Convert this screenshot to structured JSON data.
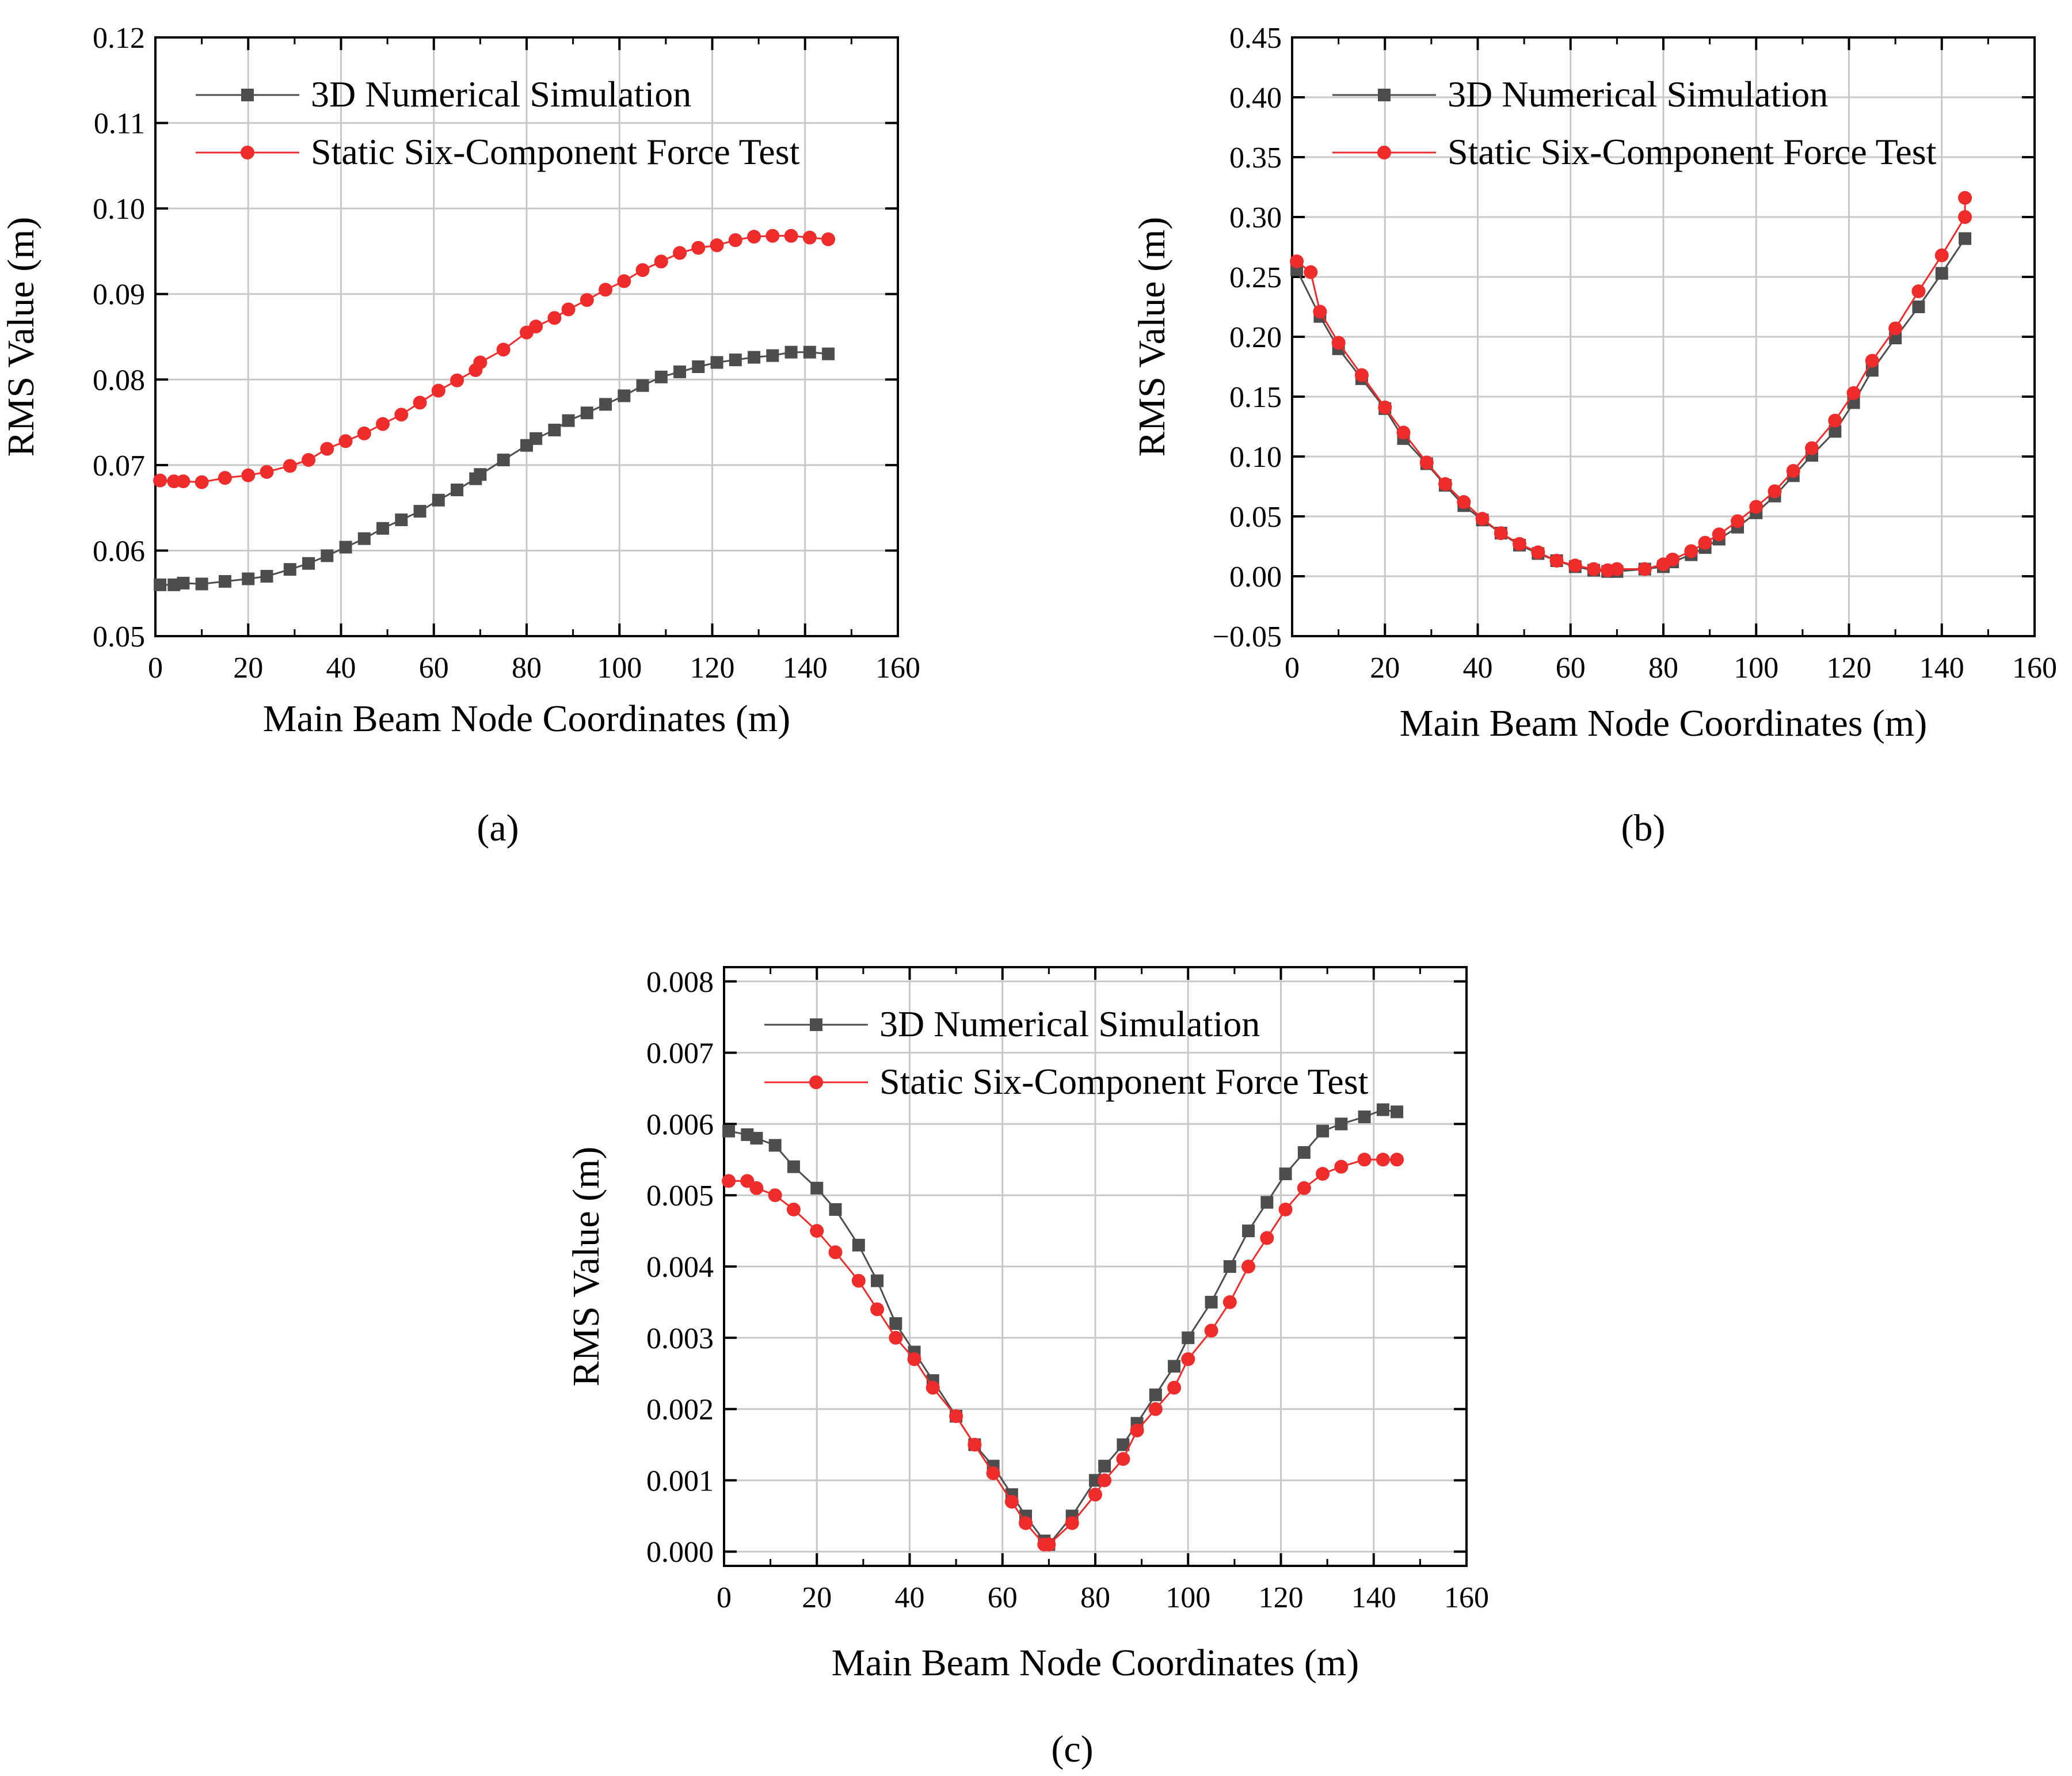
{
  "colors": {
    "sim": "#4d4d4d",
    "test": "#ee2c2c",
    "grid": "#c8c8c8"
  },
  "chart_data": [
    {
      "type": "line",
      "panel_label": "(a)",
      "xlabel": "Main Beam Node Coordinates (m)",
      "ylabel": "RMS Value (m)",
      "xlim": [
        0,
        160
      ],
      "ylim": [
        0.05,
        0.12
      ],
      "xticks": [
        "0",
        "20",
        "40",
        "60",
        "80",
        "100",
        "120",
        "140",
        "160"
      ],
      "yticks": [
        "0.05",
        "0.06",
        "0.07",
        "0.08",
        "0.09",
        "0.10",
        "0.11",
        "0.12"
      ],
      "grid": true,
      "legend_position": "top-left",
      "series": [
        {
          "name": "3D Numerical Simulation",
          "marker": "square",
          "color": "#4d4d4d",
          "x": [
            1,
            4,
            6,
            10,
            15,
            20,
            24,
            29,
            33,
            37,
            41,
            45,
            49,
            53,
            57,
            61,
            65,
            69,
            70,
            75,
            80,
            82,
            86,
            89,
            93,
            97,
            101,
            105,
            109,
            113,
            117,
            121,
            125,
            129,
            133,
            137,
            141,
            145
          ],
          "y": [
            0.056,
            0.056,
            0.0562,
            0.0561,
            0.0564,
            0.0567,
            0.057,
            0.0578,
            0.0585,
            0.0594,
            0.0604,
            0.0614,
            0.0626,
            0.0636,
            0.0646,
            0.0659,
            0.0671,
            0.0684,
            0.0689,
            0.0706,
            0.0723,
            0.0731,
            0.0741,
            0.0752,
            0.0761,
            0.0771,
            0.0781,
            0.0793,
            0.0803,
            0.0809,
            0.0815,
            0.082,
            0.0823,
            0.0826,
            0.0828,
            0.0832,
            0.0832,
            0.083
          ]
        },
        {
          "name": "Static Six-Component Force Test",
          "marker": "circle",
          "color": "#ee2c2c",
          "x": [
            1,
            4,
            6,
            10,
            15,
            20,
            24,
            29,
            33,
            37,
            41,
            45,
            49,
            53,
            57,
            61,
            65,
            69,
            70,
            75,
            80,
            82,
            86,
            89,
            93,
            97,
            101,
            105,
            109,
            113,
            117,
            121,
            125,
            129,
            133,
            137,
            141,
            145
          ],
          "y": [
            0.0682,
            0.0681,
            0.0681,
            0.068,
            0.0685,
            0.0688,
            0.0692,
            0.0699,
            0.0706,
            0.0719,
            0.0728,
            0.0737,
            0.0748,
            0.0759,
            0.0773,
            0.0787,
            0.0799,
            0.0811,
            0.082,
            0.0835,
            0.0855,
            0.0862,
            0.0872,
            0.0882,
            0.0893,
            0.0905,
            0.0915,
            0.0928,
            0.0938,
            0.0948,
            0.0954,
            0.0957,
            0.0963,
            0.0967,
            0.0968,
            0.0968,
            0.0966,
            0.0964
          ]
        }
      ]
    },
    {
      "type": "line",
      "panel_label": "(b)",
      "xlabel": "Main Beam Node Coordinates (m)",
      "ylabel": "RMS Value (m)",
      "xlim": [
        0,
        160
      ],
      "ylim": [
        -0.05,
        0.45
      ],
      "xticks": [
        "0",
        "20",
        "40",
        "60",
        "80",
        "100",
        "120",
        "140",
        "160"
      ],
      "yticks": [
        "−0.05",
        "0.00",
        "0.05",
        "0.10",
        "0.15",
        "0.20",
        "0.25",
        "0.30",
        "0.35",
        "0.40",
        "0.45"
      ],
      "grid": true,
      "legend_position": "top-left",
      "series": [
        {
          "name": "3D Numerical Simulation",
          "marker": "square",
          "color": "#4d4d4d",
          "x": [
            1,
            6,
            10,
            15,
            20,
            24,
            29,
            33,
            37,
            41,
            45,
            49,
            53,
            57,
            61,
            65,
            68,
            70,
            76,
            80,
            82,
            86,
            89,
            92,
            96,
            100,
            104,
            108,
            112,
            117,
            121,
            125,
            130,
            135,
            140,
            145
          ],
          "y": [
            0.256,
            0.217,
            0.19,
            0.165,
            0.14,
            0.115,
            0.094,
            0.076,
            0.059,
            0.047,
            0.036,
            0.026,
            0.019,
            0.013,
            0.008,
            0.005,
            0.004,
            0.004,
            0.006,
            0.008,
            0.012,
            0.018,
            0.024,
            0.031,
            0.041,
            0.053,
            0.067,
            0.084,
            0.101,
            0.121,
            0.145,
            0.172,
            0.199,
            0.225,
            0.253,
            0.282
          ]
        },
        {
          "name": "Static Six-Component Force Test",
          "marker": "circle",
          "color": "#ee2c2c",
          "x": [
            1,
            4,
            6,
            10,
            15,
            20,
            24,
            29,
            33,
            37,
            41,
            45,
            49,
            53,
            57,
            61,
            65,
            68,
            70,
            76,
            80,
            82,
            86,
            89,
            92,
            96,
            100,
            104,
            108,
            112,
            117,
            121,
            125,
            130,
            135,
            140,
            145,
            145
          ],
          "y": [
            0.263,
            0.254,
            0.221,
            0.195,
            0.168,
            0.141,
            0.12,
            0.095,
            0.077,
            0.062,
            0.048,
            0.036,
            0.027,
            0.02,
            0.013,
            0.009,
            0.006,
            0.005,
            0.006,
            0.006,
            0.01,
            0.014,
            0.021,
            0.028,
            0.035,
            0.046,
            0.058,
            0.071,
            0.088,
            0.107,
            0.13,
            0.153,
            0.18,
            0.207,
            0.238,
            0.268,
            0.3,
            0.316
          ]
        }
      ]
    },
    {
      "type": "line",
      "panel_label": "(c)",
      "xlabel": "Main Beam Node Coordinates (m)",
      "ylabel": "RMS Value (m)",
      "xlim": [
        0,
        160
      ],
      "ylim": [
        -0.0002,
        0.0082
      ],
      "xticks": [
        "0",
        "20",
        "40",
        "60",
        "80",
        "100",
        "120",
        "140",
        "160"
      ],
      "yticks": [
        "0.000",
        "0.001",
        "0.002",
        "0.003",
        "0.004",
        "0.005",
        "0.006",
        "0.007",
        "0.008"
      ],
      "grid": true,
      "legend_position": "top-left",
      "series": [
        {
          "name": "3D Numerical Simulation",
          "marker": "square",
          "color": "#4d4d4d",
          "x": [
            1,
            5,
            7,
            11,
            15,
            20,
            24,
            29,
            33,
            37,
            41,
            45,
            50,
            54,
            58,
            62,
            65,
            69,
            70,
            75,
            80,
            82,
            86,
            89,
            93,
            97,
            100,
            105,
            109,
            113,
            117,
            121,
            125,
            129,
            133,
            138,
            142,
            145
          ],
          "y": [
            0.0059,
            0.00585,
            0.0058,
            0.0057,
            0.0054,
            0.0051,
            0.0048,
            0.0043,
            0.0038,
            0.0032,
            0.0028,
            0.0024,
            0.0019,
            0.0015,
            0.0012,
            0.0008,
            0.0005,
            0.00015,
            0.0001,
            0.0005,
            0.001,
            0.0012,
            0.0015,
            0.0018,
            0.0022,
            0.0026,
            0.003,
            0.0035,
            0.004,
            0.0045,
            0.0049,
            0.0053,
            0.0056,
            0.0059,
            0.006,
            0.0061,
            0.0062,
            0.00617
          ]
        },
        {
          "name": "Static Six-Component Force Test",
          "marker": "circle",
          "color": "#ee2c2c",
          "x": [
            1,
            5,
            7,
            11,
            15,
            20,
            24,
            29,
            33,
            37,
            41,
            45,
            50,
            54,
            58,
            62,
            65,
            69,
            70,
            75,
            80,
            82,
            86,
            89,
            93,
            97,
            100,
            105,
            109,
            113,
            117,
            121,
            125,
            129,
            133,
            138,
            142,
            145
          ],
          "y": [
            0.0052,
            0.0052,
            0.0051,
            0.005,
            0.0048,
            0.0045,
            0.0042,
            0.0038,
            0.0034,
            0.003,
            0.0027,
            0.0023,
            0.0019,
            0.0015,
            0.0011,
            0.0007,
            0.0004,
            0.0001,
            0.0001,
            0.0004,
            0.0008,
            0.001,
            0.0013,
            0.0017,
            0.002,
            0.0023,
            0.0027,
            0.0031,
            0.0035,
            0.004,
            0.0044,
            0.0048,
            0.0051,
            0.0053,
            0.0054,
            0.0055,
            0.0055,
            0.0055
          ]
        }
      ]
    }
  ]
}
